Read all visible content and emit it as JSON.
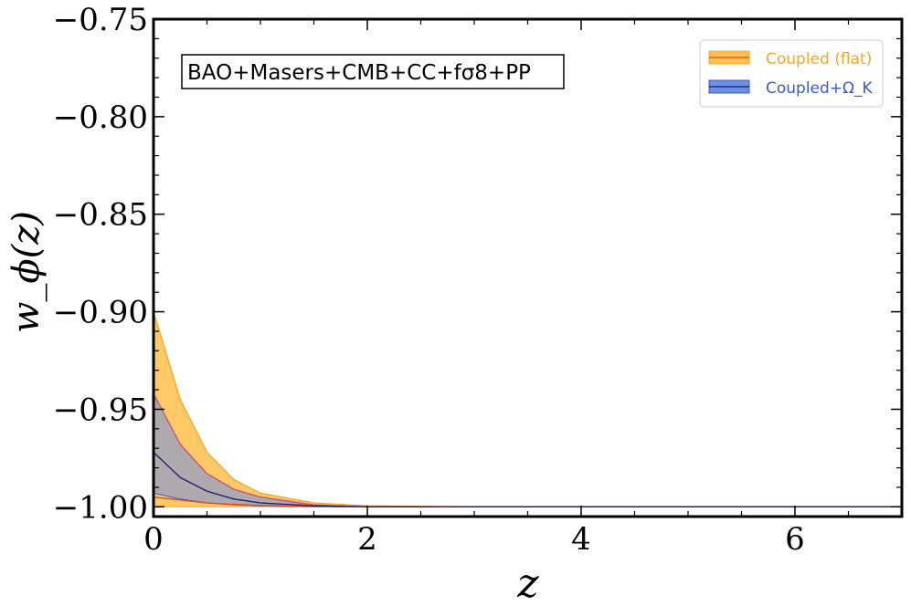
{
  "chart_data": {
    "type": "area",
    "xlabel": "z",
    "ylabel": "w_ϕ(z)",
    "xlim": [
      0,
      7
    ],
    "ylim": [
      -1.005,
      -0.75
    ],
    "x_ticks": [
      0,
      2,
      4,
      6
    ],
    "x_tick_labels": [
      "0",
      "2",
      "4",
      "6"
    ],
    "y_ticks": [
      -1.0,
      -0.95,
      -0.9,
      -0.85,
      -0.8,
      -0.75
    ],
    "y_tick_labels": [
      "−1.00",
      "−0.95",
      "−0.90",
      "−0.85",
      "−0.80",
      "−0.75"
    ],
    "annotation": "BAO+Masers+CMB+CC+fσ8+PP",
    "legend_position": "upper right",
    "grid": false,
    "series": [
      {
        "name": "Coupled (flat)",
        "color": "#f5a623",
        "fill": "#ffc04d",
        "x": [
          0,
          0.25,
          0.5,
          0.75,
          1.0,
          1.5,
          2.0,
          3.0,
          7.0
        ],
        "central": [
          -0.995,
          -0.9965,
          -0.998,
          -0.9988,
          -0.9993,
          -0.9998,
          -1.0,
          -1.0,
          -1.0
        ],
        "upper": [
          -0.9,
          -0.945,
          -0.972,
          -0.986,
          -0.993,
          -0.998,
          -0.9995,
          -1.0,
          -1.0
        ],
        "lower": [
          -1.0,
          -1.0,
          -1.0,
          -1.0,
          -1.0,
          -1.0,
          -1.0,
          -1.0,
          -1.0
        ]
      },
      {
        "name": "Coupled+Ω_K",
        "color": "#1a1a6e",
        "fill": "#6b8ee6",
        "x": [
          0,
          0.25,
          0.5,
          0.75,
          1.0,
          1.5,
          2.0,
          3.0,
          7.0
        ],
        "central": [
          -0.972,
          -0.985,
          -0.992,
          -0.996,
          -0.998,
          -0.9995,
          -1.0,
          -1.0,
          -1.0
        ],
        "upper": [
          -0.942,
          -0.968,
          -0.983,
          -0.991,
          -0.995,
          -0.999,
          -1.0,
          -1.0,
          -1.0
        ],
        "lower": [
          -0.993,
          -0.996,
          -0.998,
          -0.999,
          -0.9995,
          -1.0,
          -1.0,
          -1.0,
          -1.0
        ]
      }
    ]
  }
}
